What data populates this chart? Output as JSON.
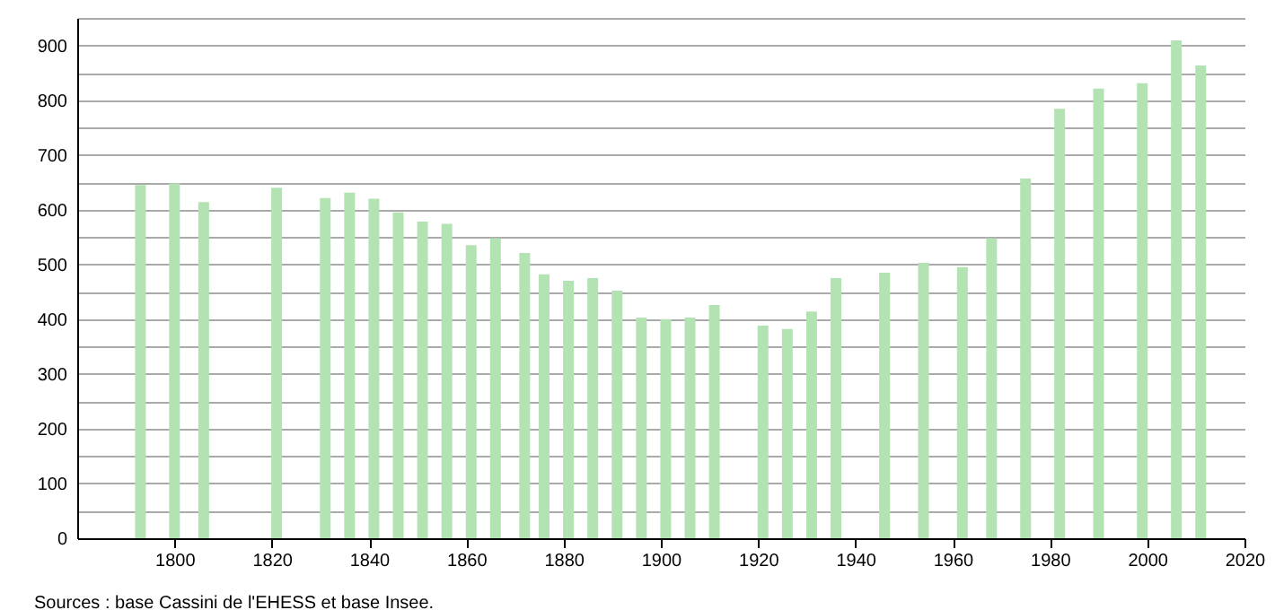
{
  "chart_data": {
    "type": "bar",
    "x": [
      1793,
      1800,
      1806,
      1821,
      1831,
      1836,
      1841,
      1846,
      1851,
      1856,
      1861,
      1866,
      1872,
      1876,
      1881,
      1886,
      1891,
      1896,
      1901,
      1906,
      1911,
      1921,
      1926,
      1931,
      1936,
      1946,
      1954,
      1962,
      1968,
      1975,
      1982,
      1990,
      1999,
      2006,
      2011
    ],
    "values": [
      645,
      648,
      614,
      640,
      621,
      631,
      620,
      595,
      578,
      574,
      535,
      548,
      521,
      482,
      470,
      475,
      452,
      403,
      400,
      403,
      426,
      388,
      382,
      414,
      475,
      485,
      503,
      495,
      548,
      657,
      784,
      821,
      831,
      909,
      863
    ],
    "color": "#b3e3b3",
    "xlim": [
      1780,
      2020
    ],
    "xticks": [
      1800,
      1820,
      1840,
      1860,
      1880,
      1900,
      1920,
      1940,
      1960,
      1980,
      2000,
      2020
    ],
    "ylim": [
      0,
      950
    ],
    "yticks": [
      0,
      {
        "value": 50,
        "label": null
      },
      100,
      {
        "value": 150,
        "label": null
      },
      200,
      {
        "value": 250,
        "label": null
      },
      300,
      {
        "value": 350,
        "label": null
      },
      400,
      {
        "value": 450,
        "label": null
      },
      500,
      {
        "value": 550,
        "label": null
      },
      600,
      {
        "value": 650,
        "label": null
      },
      700,
      {
        "value": 750,
        "label": null
      },
      800,
      {
        "value": 850,
        "label": null
      },
      900,
      {
        "value": 950,
        "label": null
      }
    ],
    "grid": "y",
    "annotations": [
      "Sources : base Cassini de l'EHESS et base Insee."
    ]
  }
}
